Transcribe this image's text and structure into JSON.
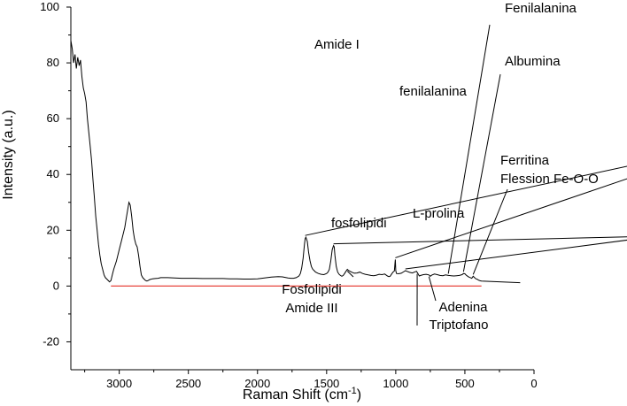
{
  "chart_data": {
    "type": "line",
    "xlabel": "Raman Shift (cm",
    "xlabel_sup": "-1",
    "xlabel_end": ")",
    "ylabel": "Intensity (a.u.)",
    "xlim": [
      3350,
      0
    ],
    "ylim": [
      -30,
      100
    ],
    "x_ticks": [
      3000,
      2500,
      2000,
      1500,
      1000,
      500,
      0
    ],
    "y_ticks": [
      100,
      80,
      60,
      40,
      20,
      0,
      -20
    ],
    "grid": false,
    "colors": {
      "spectrum": "#000000",
      "baseline": "#e8453c"
    },
    "baseline": {
      "y": 0,
      "x_range": [
        3060,
        380
      ]
    },
    "series": [
      {
        "values": [
          [
            3350,
            88
          ],
          [
            3340,
            85
          ],
          [
            3330,
            80
          ],
          [
            3320,
            83
          ],
          [
            3310,
            78
          ],
          [
            3300,
            82
          ],
          [
            3290,
            79
          ],
          [
            3280,
            81
          ],
          [
            3270,
            75
          ],
          [
            3260,
            71
          ],
          [
            3250,
            69
          ],
          [
            3240,
            66
          ],
          [
            3230,
            60
          ],
          [
            3220,
            55
          ],
          [
            3210,
            50
          ],
          [
            3200,
            45
          ],
          [
            3190,
            38
          ],
          [
            3180,
            32
          ],
          [
            3170,
            25
          ],
          [
            3160,
            20
          ],
          [
            3150,
            15
          ],
          [
            3140,
            11
          ],
          [
            3130,
            8
          ],
          [
            3120,
            6
          ],
          [
            3110,
            4
          ],
          [
            3100,
            3
          ],
          [
            3090,
            2.5
          ],
          [
            3080,
            2
          ],
          [
            3070,
            1.5
          ],
          [
            3060,
            2
          ],
          [
            3050,
            4
          ],
          [
            3040,
            6
          ],
          [
            3020,
            9
          ],
          [
            3000,
            13
          ],
          [
            2980,
            17
          ],
          [
            2960,
            21
          ],
          [
            2950,
            24
          ],
          [
            2940,
            27
          ],
          [
            2930,
            30
          ],
          [
            2920,
            29
          ],
          [
            2910,
            25
          ],
          [
            2900,
            20
          ],
          [
            2890,
            17
          ],
          [
            2880,
            15
          ],
          [
            2870,
            14
          ],
          [
            2860,
            11
          ],
          [
            2850,
            7
          ],
          [
            2840,
            4
          ],
          [
            2830,
            3
          ],
          [
            2820,
            2.5
          ],
          [
            2810,
            2
          ],
          [
            2800,
            1.8
          ],
          [
            2790,
            2
          ],
          [
            2780,
            2.3
          ],
          [
            2760,
            2.6
          ],
          [
            2740,
            2.7
          ],
          [
            2720,
            2.8
          ],
          [
            2700,
            3
          ],
          [
            2650,
            3
          ],
          [
            2600,
            2.9
          ],
          [
            2550,
            2.8
          ],
          [
            2500,
            2.8
          ],
          [
            2450,
            2.8
          ],
          [
            2400,
            2.7
          ],
          [
            2350,
            2.7
          ],
          [
            2300,
            2.7
          ],
          [
            2250,
            2.7
          ],
          [
            2200,
            2.6
          ],
          [
            2150,
            2.6
          ],
          [
            2100,
            2.5
          ],
          [
            2050,
            2.5
          ],
          [
            2000,
            2.6
          ],
          [
            1950,
            2.9
          ],
          [
            1900,
            3.2
          ],
          [
            1850,
            3.4
          ],
          [
            1820,
            3.3
          ],
          [
            1800,
            3.1
          ],
          [
            1780,
            2.9
          ],
          [
            1760,
            2.8
          ],
          [
            1740,
            2.8
          ],
          [
            1720,
            3
          ],
          [
            1700,
            3.6
          ],
          [
            1690,
            4.5
          ],
          [
            1680,
            6.5
          ],
          [
            1670,
            10
          ],
          [
            1660,
            15
          ],
          [
            1655,
            17
          ],
          [
            1650,
            17.5
          ],
          [
            1640,
            16
          ],
          [
            1630,
            12
          ],
          [
            1620,
            9
          ],
          [
            1610,
            7
          ],
          [
            1600,
            6
          ],
          [
            1590,
            5.5
          ],
          [
            1580,
            5
          ],
          [
            1560,
            4.5
          ],
          [
            1540,
            4.2
          ],
          [
            1520,
            4.1
          ],
          [
            1500,
            4.5
          ],
          [
            1490,
            5
          ],
          [
            1480,
            6
          ],
          [
            1470,
            9
          ],
          [
            1460,
            13
          ],
          [
            1450,
            14.5
          ],
          [
            1445,
            14
          ],
          [
            1440,
            11
          ],
          [
            1430,
            7
          ],
          [
            1420,
            5
          ],
          [
            1410,
            4.2
          ],
          [
            1400,
            3.8
          ],
          [
            1390,
            3.5
          ],
          [
            1380,
            3.8
          ],
          [
            1370,
            4.5
          ],
          [
            1360,
            5.3
          ],
          [
            1350,
            6
          ],
          [
            1340,
            5.5
          ],
          [
            1320,
            5
          ],
          [
            1300,
            4.6
          ],
          [
            1280,
            4.7
          ],
          [
            1260,
            5
          ],
          [
            1240,
            4.5
          ],
          [
            1220,
            4.2
          ],
          [
            1200,
            4
          ],
          [
            1180,
            3.8
          ],
          [
            1160,
            3.7
          ],
          [
            1140,
            3.9
          ],
          [
            1120,
            4.2
          ],
          [
            1100,
            4.1
          ],
          [
            1080,
            4.3
          ],
          [
            1060,
            3.6
          ],
          [
            1050,
            3.4
          ],
          [
            1040,
            3.5
          ],
          [
            1030,
            4.3
          ],
          [
            1020,
            5
          ],
          [
            1010,
            5.4
          ],
          [
            1005,
            8.5
          ],
          [
            1003,
            9.5
          ],
          [
            1000,
            5.5
          ],
          [
            995,
            4.5
          ],
          [
            980,
            4.4
          ],
          [
            960,
            4.6
          ],
          [
            940,
            5.2
          ],
          [
            930,
            5.5
          ],
          [
            920,
            5.3
          ],
          [
            900,
            4.9
          ],
          [
            880,
            4.7
          ],
          [
            860,
            5.1
          ],
          [
            850,
            5.3
          ],
          [
            840,
            4.5
          ],
          [
            830,
            3.6
          ],
          [
            820,
            3.8
          ],
          [
            800,
            4.1
          ],
          [
            780,
            4.2
          ],
          [
            760,
            4
          ],
          [
            750,
            3.5
          ],
          [
            740,
            3.9
          ],
          [
            720,
            4.3
          ],
          [
            700,
            4.1
          ],
          [
            680,
            3.8
          ],
          [
            660,
            3.7
          ],
          [
            640,
            4
          ],
          [
            620,
            3.8
          ],
          [
            600,
            3.7
          ],
          [
            580,
            3.6
          ],
          [
            560,
            3.7
          ],
          [
            540,
            3.8
          ],
          [
            520,
            4.1
          ],
          [
            510,
            4.5
          ],
          [
            500,
            4.4
          ],
          [
            490,
            3.9
          ],
          [
            480,
            3.5
          ],
          [
            470,
            3.2
          ],
          [
            460,
            3
          ],
          [
            450,
            2.8
          ],
          [
            440,
            3.5
          ],
          [
            430,
            3
          ],
          [
            420,
            2.6
          ],
          [
            410,
            2.4
          ],
          [
            400,
            2.1
          ],
          [
            390,
            1.9
          ],
          [
            380,
            1.8
          ],
          [
            100,
            1.2
          ]
        ]
      }
    ],
    "annotations": [
      {
        "lines": [
          "Amide I"
        ],
        "x": 1655,
        "y": 17.5
      },
      {
        "lines": [
          "fosfolipidi"
        ],
        "x": 1450,
        "y": 14.5
      },
      {
        "lines": [
          "fenilalanina"
        ],
        "x": 1003,
        "y": 9.5
      },
      {
        "lines": [
          "L-prolina"
        ],
        "x": 930,
        "y": 5.5
      },
      {
        "lines": [
          "Fenilalanina"
        ],
        "x": 620,
        "y": 3.8
      },
      {
        "lines": [
          "Albumina"
        ],
        "x": 510,
        "y": 4.5
      },
      {
        "lines": [
          "Ferritina",
          "Flession Fe-O-O"
        ],
        "x": 440,
        "y": 3.5
      },
      {
        "lines": [
          "Fosfolipidi",
          "Amide III"
        ],
        "x": 1350,
        "y": 6
      },
      {
        "lines": [
          "Triptofano"
        ],
        "x": 845,
        "y": 5
      },
      {
        "lines": [
          "Adenina"
        ],
        "x": 760,
        "y": 4
      }
    ]
  }
}
